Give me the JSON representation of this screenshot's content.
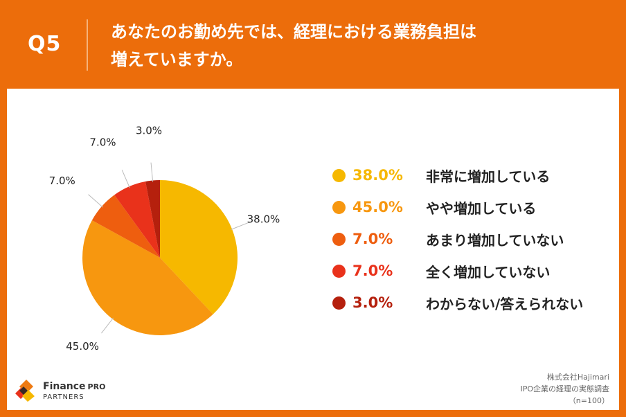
{
  "header": {
    "question_number": "Q5",
    "title_line1": "あなたのお勤め先では、経理における業務負担は",
    "title_line2": "増えていますか。"
  },
  "chart_data": {
    "type": "pie",
    "unit": "%",
    "slices": [
      {
        "label": "非常に増加している",
        "value": 38.0,
        "value_label": "38.0%",
        "color": "#f6b800"
      },
      {
        "label": "やや増加している",
        "value": 45.0,
        "value_label": "45.0%",
        "color": "#f7970f"
      },
      {
        "label": "あまり増加していない",
        "value": 7.0,
        "value_label": "7.0%",
        "color": "#ee5e0f"
      },
      {
        "label": "全く増加していない",
        "value": 7.0,
        "value_label": "7.0%",
        "color": "#e9321b"
      },
      {
        "label": "わからない/答えられない",
        "value": 3.0,
        "value_label": "3.0%",
        "color": "#b5200d"
      }
    ]
  },
  "logo": {
    "name": "Finance",
    "name_suffix": "PRO",
    "sub": "PARTNERS"
  },
  "source": {
    "line1": "株式会社Hajimari",
    "line2": "IPO企業の経理の実態調査",
    "line3": "（n=100）"
  }
}
